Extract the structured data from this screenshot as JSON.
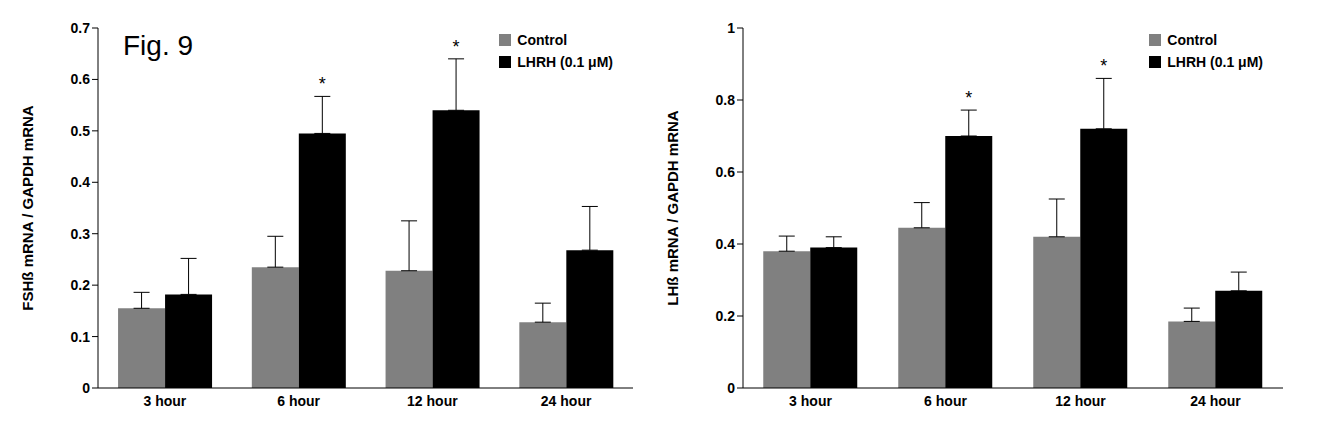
{
  "chart_data": [
    {
      "type": "bar",
      "title": "Fig. 9",
      "categories": [
        "3 hour",
        "6 hour",
        "12 hour",
        "24 hour"
      ],
      "y_label": "FSHß mRNA / GAPDH mRNA",
      "series": [
        {
          "name": "Control",
          "color": "#808080",
          "values": [
            0.155,
            0.235,
            0.228,
            0.128
          ],
          "errors": [
            0.031,
            0.06,
            0.097,
            0.037
          ]
        },
        {
          "name": "LHRH (0.1 μM)",
          "color": "#000000",
          "values": [
            0.182,
            0.495,
            0.54,
            0.268
          ],
          "errors": [
            0.07,
            0.072,
            0.1,
            0.085
          ]
        }
      ],
      "annotations": [
        {
          "category": "6 hour",
          "series": "LHRH (0.1 μM)",
          "text": "*"
        },
        {
          "category": "12 hour",
          "series": "LHRH (0.1 μM)",
          "text": "*"
        }
      ],
      "ylim": [
        0,
        0.7
      ],
      "yticks": [
        0,
        0.1,
        0.2,
        0.3,
        0.4,
        0.5,
        0.6,
        0.7
      ],
      "grid": false,
      "legend": "upper right"
    },
    {
      "type": "bar",
      "categories": [
        "3 hour",
        "6 hour",
        "12 hour",
        "24 hour"
      ],
      "y_label": "LHß mRNA / GAPDH mRNA",
      "series": [
        {
          "name": "Control",
          "color": "#808080",
          "values": [
            0.38,
            0.445,
            0.42,
            0.185
          ],
          "errors": [
            0.042,
            0.07,
            0.105,
            0.037
          ]
        },
        {
          "name": "LHRH (0.1 μM)",
          "color": "#000000",
          "values": [
            0.39,
            0.7,
            0.72,
            0.27
          ],
          "errors": [
            0.03,
            0.072,
            0.14,
            0.052
          ]
        }
      ],
      "annotations": [
        {
          "category": "6 hour",
          "series": "LHRH (0.1 μM)",
          "text": "*"
        },
        {
          "category": "12 hour",
          "series": "LHRH (0.1 μM)",
          "text": "*"
        }
      ],
      "ylim": [
        0,
        1
      ],
      "yticks": [
        0,
        0.2,
        0.4,
        0.6,
        0.8,
        1
      ],
      "grid": false,
      "legend": "upper right"
    }
  ]
}
